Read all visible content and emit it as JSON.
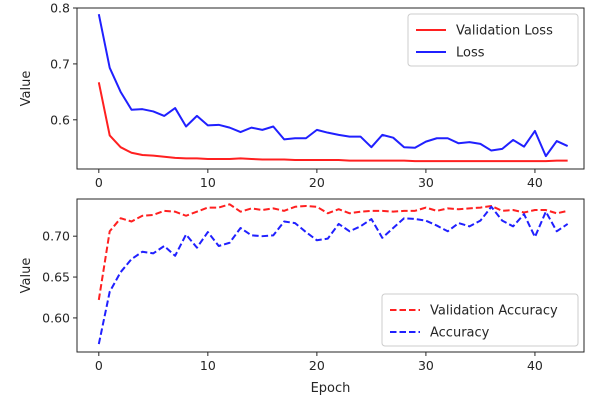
{
  "chart_data": [
    {
      "type": "line",
      "xlabel": "",
      "ylabel": "Value",
      "xlim": [
        -2,
        44.5
      ],
      "ylim": [
        0.512,
        0.8
      ],
      "xticks": [
        0,
        10,
        20,
        30,
        40
      ],
      "yticks": [
        0.6,
        0.7,
        0.8
      ],
      "ytick_labels": [
        "0.6",
        "0.7",
        "0.8"
      ],
      "legend_position": "top-right",
      "grid": false,
      "x": [
        0,
        1,
        2,
        3,
        4,
        5,
        6,
        7,
        8,
        9,
        10,
        11,
        12,
        13,
        14,
        15,
        16,
        17,
        18,
        19,
        20,
        21,
        22,
        23,
        24,
        25,
        26,
        27,
        28,
        29,
        30,
        31,
        32,
        33,
        34,
        35,
        36,
        37,
        38,
        39,
        40,
        41,
        42,
        43
      ],
      "series": [
        {
          "name": "Validation Loss",
          "color": "#ff2020",
          "style": "solid",
          "values": [
            0.667,
            0.572,
            0.551,
            0.541,
            0.537,
            0.536,
            0.534,
            0.532,
            0.531,
            0.531,
            0.53,
            0.53,
            0.53,
            0.531,
            0.53,
            0.529,
            0.529,
            0.529,
            0.528,
            0.528,
            0.528,
            0.528,
            0.528,
            0.527,
            0.527,
            0.527,
            0.527,
            0.527,
            0.527,
            0.526,
            0.526,
            0.526,
            0.526,
            0.526,
            0.526,
            0.526,
            0.526,
            0.526,
            0.526,
            0.526,
            0.526,
            0.526,
            0.527,
            0.527
          ]
        },
        {
          "name": "Loss",
          "color": "#2020ff",
          "style": "solid",
          "values": [
            0.789,
            0.693,
            0.65,
            0.618,
            0.619,
            0.615,
            0.607,
            0.621,
            0.588,
            0.607,
            0.59,
            0.591,
            0.586,
            0.578,
            0.586,
            0.582,
            0.588,
            0.565,
            0.567,
            0.567,
            0.582,
            0.577,
            0.573,
            0.57,
            0.57,
            0.551,
            0.573,
            0.568,
            0.551,
            0.55,
            0.561,
            0.567,
            0.567,
            0.558,
            0.56,
            0.557,
            0.545,
            0.548,
            0.564,
            0.552,
            0.58,
            0.535,
            0.562,
            0.553
          ]
        }
      ]
    },
    {
      "type": "line",
      "xlabel": "Epoch",
      "ylabel": "Value",
      "xlim": [
        -2,
        44.5
      ],
      "ylim": [
        0.5583,
        0.7455
      ],
      "xticks": [
        0,
        10,
        20,
        30,
        40
      ],
      "yticks": [
        0.6,
        0.65,
        0.7
      ],
      "ytick_labels": [
        "0.60",
        "0.65",
        "0.70"
      ],
      "legend_position": "bottom-right",
      "grid": false,
      "x": [
        0,
        1,
        2,
        3,
        4,
        5,
        6,
        7,
        8,
        9,
        10,
        11,
        12,
        13,
        14,
        15,
        16,
        17,
        18,
        19,
        20,
        21,
        22,
        23,
        24,
        25,
        26,
        27,
        28,
        29,
        30,
        31,
        32,
        33,
        34,
        35,
        36,
        37,
        38,
        39,
        40,
        41,
        42,
        43
      ],
      "series": [
        {
          "name": "Validation Accuracy",
          "color": "#ff2020",
          "style": "dashed",
          "values": [
            0.622,
            0.706,
            0.722,
            0.718,
            0.725,
            0.726,
            0.731,
            0.73,
            0.725,
            0.73,
            0.735,
            0.735,
            0.739,
            0.73,
            0.734,
            0.732,
            0.734,
            0.731,
            0.736,
            0.737,
            0.736,
            0.728,
            0.733,
            0.728,
            0.73,
            0.731,
            0.731,
            0.73,
            0.731,
            0.731,
            0.735,
            0.731,
            0.734,
            0.733,
            0.734,
            0.735,
            0.737,
            0.731,
            0.732,
            0.729,
            0.732,
            0.732,
            0.728,
            0.731
          ]
        },
        {
          "name": "Accuracy",
          "color": "#2020ff",
          "style": "dashed",
          "values": [
            0.568,
            0.632,
            0.656,
            0.672,
            0.681,
            0.679,
            0.688,
            0.676,
            0.702,
            0.686,
            0.705,
            0.688,
            0.692,
            0.71,
            0.701,
            0.7,
            0.701,
            0.718,
            0.716,
            0.705,
            0.695,
            0.697,
            0.715,
            0.706,
            0.712,
            0.721,
            0.698,
            0.71,
            0.722,
            0.721,
            0.719,
            0.713,
            0.706,
            0.716,
            0.712,
            0.719,
            0.736,
            0.719,
            0.712,
            0.727,
            0.699,
            0.73,
            0.706,
            0.715
          ]
        }
      ]
    }
  ]
}
